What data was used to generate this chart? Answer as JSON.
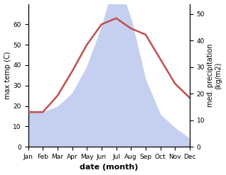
{
  "months": [
    "Jan",
    "Feb",
    "Mar",
    "Apr",
    "May",
    "Jun",
    "Jul",
    "Aug",
    "Sep",
    "Oct",
    "Nov",
    "Dec"
  ],
  "month_indices": [
    0,
    1,
    2,
    3,
    4,
    5,
    6,
    7,
    8,
    9,
    10,
    11
  ],
  "temperature": [
    17,
    17,
    25,
    37,
    50,
    60,
    63,
    58,
    55,
    43,
    31,
    24
  ],
  "precipitation": [
    13,
    13,
    15,
    20,
    30,
    45,
    64,
    48,
    25,
    12,
    7,
    3
  ],
  "temp_color": "#c0504d",
  "precip_fill_color": "#c5cff0",
  "temp_ylim": [
    0,
    70
  ],
  "precip_ylim": [
    0,
    53.8
  ],
  "temp_yticks": [
    0,
    10,
    20,
    30,
    40,
    50,
    60
  ],
  "precip_yticks": [
    0,
    10,
    20,
    30,
    40,
    50
  ],
  "xlabel": "date (month)",
  "ylabel_left": "max temp (C)",
  "ylabel_right": "med. precipitation\n(kg/m2)",
  "background_color": "#ffffff",
  "temp_linewidth": 1.8,
  "xlabel_fontsize": 8,
  "ylabel_fontsize": 7,
  "tick_fontsize": 6.5
}
